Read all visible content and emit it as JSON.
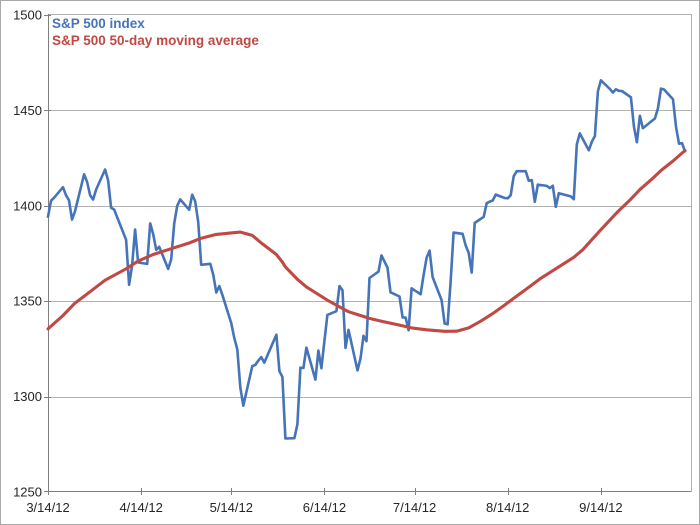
{
  "window": {
    "background": "#ffffff",
    "border_color": "#a9a9a9"
  },
  "chart_data": {
    "type": "line",
    "title": "",
    "grid": "horizontal",
    "legend_position": "top-left-inside",
    "colors": {
      "index_line": "#4674b9",
      "ma_line": "#c04944",
      "gridline": "#b3b3b3",
      "axis_line": "#7f7f7f",
      "tick_text": "#262626"
    },
    "x_axis": {
      "start": "3/14/12",
      "end": "10/14/12",
      "tick_labels": [
        "3/14/12",
        "4/14/12",
        "5/14/12",
        "6/14/12",
        "7/14/12",
        "8/14/12",
        "9/14/12"
      ]
    },
    "y_axis": {
      "min": 1250,
      "max": 1500,
      "step": 50,
      "tick_labels": [
        "1500",
        "1450",
        "1400",
        "1350",
        "1300",
        "1250"
      ]
    },
    "series": [
      {
        "name": "S&P 500 index",
        "color": "#4674b9",
        "width": 2.6,
        "points": [
          [
            "3/14",
            1394.28
          ],
          [
            "3/15",
            1402.6
          ],
          [
            "3/16",
            1404.17
          ],
          [
            "3/19",
            1409.75
          ],
          [
            "3/20",
            1405.52
          ],
          [
            "3/21",
            1402.89
          ],
          [
            "3/22",
            1392.78
          ],
          [
            "3/23",
            1397.11
          ],
          [
            "3/26",
            1416.51
          ],
          [
            "3/27",
            1412.52
          ],
          [
            "3/28",
            1405.54
          ],
          [
            "3/29",
            1403.28
          ],
          [
            "3/30",
            1408.47
          ],
          [
            "4/2",
            1419.04
          ],
          [
            "4/3",
            1413.38
          ],
          [
            "4/4",
            1398.96
          ],
          [
            "4/5",
            1398.08
          ],
          [
            "4/9",
            1382.2
          ],
          [
            "4/10",
            1358.59
          ],
          [
            "4/11",
            1368.71
          ],
          [
            "4/12",
            1387.57
          ],
          [
            "4/13",
            1370.26
          ],
          [
            "4/16",
            1369.57
          ],
          [
            "4/17",
            1390.78
          ],
          [
            "4/18",
            1385.14
          ],
          [
            "4/19",
            1376.92
          ],
          [
            "4/20",
            1378.53
          ],
          [
            "4/23",
            1366.94
          ],
          [
            "4/24",
            1371.97
          ],
          [
            "4/25",
            1390.69
          ],
          [
            "4/26",
            1399.98
          ],
          [
            "4/27",
            1403.36
          ],
          [
            "4/30",
            1397.91
          ],
          [
            "5/1",
            1405.82
          ],
          [
            "5/2",
            1402.31
          ],
          [
            "5/3",
            1391.57
          ],
          [
            "5/4",
            1369.1
          ],
          [
            "5/7",
            1369.58
          ],
          [
            "5/8",
            1363.72
          ],
          [
            "5/9",
            1354.58
          ],
          [
            "5/10",
            1357.99
          ],
          [
            "5/11",
            1353.39
          ],
          [
            "5/14",
            1338.35
          ],
          [
            "5/15",
            1330.66
          ],
          [
            "5/16",
            1324.8
          ],
          [
            "5/17",
            1304.86
          ],
          [
            "5/18",
            1295.22
          ],
          [
            "5/21",
            1315.99
          ],
          [
            "5/22",
            1316.63
          ],
          [
            "5/23",
            1318.86
          ],
          [
            "5/24",
            1320.68
          ],
          [
            "5/25",
            1317.82
          ],
          [
            "5/29",
            1332.42
          ],
          [
            "5/30",
            1313.32
          ],
          [
            "5/31",
            1310.33
          ],
          [
            "6/1",
            1278.04
          ],
          [
            "6/4",
            1278.18
          ],
          [
            "6/5",
            1285.5
          ],
          [
            "6/6",
            1315.13
          ],
          [
            "6/7",
            1314.99
          ],
          [
            "6/8",
            1325.66
          ],
          [
            "6/11",
            1308.93
          ],
          [
            "6/12",
            1324.18
          ],
          [
            "6/13",
            1314.88
          ],
          [
            "6/14",
            1329.1
          ],
          [
            "6/15",
            1342.84
          ],
          [
            "6/18",
            1344.78
          ],
          [
            "6/19",
            1357.98
          ],
          [
            "6/20",
            1355.69
          ],
          [
            "6/21",
            1325.51
          ],
          [
            "6/22",
            1335.02
          ],
          [
            "6/25",
            1313.72
          ],
          [
            "6/26",
            1319.99
          ],
          [
            "6/27",
            1331.85
          ],
          [
            "6/28",
            1329.04
          ],
          [
            "6/29",
            1362.16
          ],
          [
            "7/2",
            1365.51
          ],
          [
            "7/3",
            1374.02
          ],
          [
            "7/5",
            1367.58
          ],
          [
            "7/6",
            1354.68
          ],
          [
            "7/9",
            1352.46
          ],
          [
            "7/10",
            1341.47
          ],
          [
            "7/11",
            1341.45
          ],
          [
            "7/12",
            1334.76
          ],
          [
            "7/13",
            1356.78
          ],
          [
            "7/16",
            1353.64
          ],
          [
            "7/17",
            1363.67
          ],
          [
            "7/18",
            1372.78
          ],
          [
            "7/19",
            1376.51
          ],
          [
            "7/20",
            1362.66
          ],
          [
            "7/23",
            1350.52
          ],
          [
            "7/24",
            1338.31
          ],
          [
            "7/25",
            1337.89
          ],
          [
            "7/26",
            1360.02
          ],
          [
            "7/27",
            1385.97
          ],
          [
            "7/30",
            1385.3
          ],
          [
            "7/31",
            1379.32
          ],
          [
            "8/1",
            1375.32
          ],
          [
            "8/2",
            1365.0
          ],
          [
            "8/3",
            1390.99
          ],
          [
            "8/6",
            1394.23
          ],
          [
            "8/7",
            1401.35
          ],
          [
            "8/8",
            1402.22
          ],
          [
            "8/9",
            1402.8
          ],
          [
            "8/10",
            1405.87
          ],
          [
            "8/13",
            1404.11
          ],
          [
            "8/14",
            1403.93
          ],
          [
            "8/15",
            1405.53
          ],
          [
            "8/16",
            1415.51
          ],
          [
            "8/17",
            1418.16
          ],
          [
            "8/20",
            1418.13
          ],
          [
            "8/21",
            1413.17
          ],
          [
            "8/22",
            1413.49
          ],
          [
            "8/23",
            1402.08
          ],
          [
            "8/24",
            1411.13
          ],
          [
            "8/27",
            1410.44
          ],
          [
            "8/28",
            1409.3
          ],
          [
            "8/29",
            1410.49
          ],
          [
            "8/30",
            1399.48
          ],
          [
            "8/31",
            1406.58
          ],
          [
            "9/4",
            1404.94
          ],
          [
            "9/5",
            1403.44
          ],
          [
            "9/6",
            1432.12
          ],
          [
            "9/7",
            1437.92
          ],
          [
            "9/10",
            1429.08
          ],
          [
            "9/11",
            1433.56
          ],
          [
            "9/12",
            1436.56
          ],
          [
            "9/13",
            1459.99
          ],
          [
            "9/14",
            1465.77
          ],
          [
            "9/17",
            1461.19
          ],
          [
            "9/18",
            1459.32
          ],
          [
            "9/19",
            1461.05
          ],
          [
            "9/20",
            1460.26
          ],
          [
            "9/21",
            1460.15
          ],
          [
            "9/24",
            1456.89
          ],
          [
            "9/25",
            1441.59
          ],
          [
            "9/26",
            1433.32
          ],
          [
            "9/27",
            1447.15
          ],
          [
            "9/28",
            1440.67
          ],
          [
            "10/1",
            1444.49
          ],
          [
            "10/2",
            1445.75
          ],
          [
            "10/3",
            1450.99
          ],
          [
            "10/4",
            1461.4
          ],
          [
            "10/5",
            1460.93
          ],
          [
            "10/8",
            1455.88
          ],
          [
            "10/9",
            1441.48
          ],
          [
            "10/10",
            1432.56
          ],
          [
            "10/11",
            1432.84
          ],
          [
            "10/12",
            1428.59
          ]
        ]
      },
      {
        "name": "S&P 500 50-day moving average",
        "color": "#c04944",
        "width": 3.1,
        "points": [
          [
            "3/14",
            1335.5
          ],
          [
            "3/19",
            1342.5
          ],
          [
            "3/23",
            1349
          ],
          [
            "3/28",
            1355
          ],
          [
            "4/2",
            1361
          ],
          [
            "4/9",
            1367
          ],
          [
            "4/13",
            1371
          ],
          [
            "4/18",
            1374.5
          ],
          [
            "4/24",
            1377.5
          ],
          [
            "4/30",
            1380.5
          ],
          [
            "5/4",
            1383
          ],
          [
            "5/9",
            1385
          ],
          [
            "5/14",
            1385.8
          ],
          [
            "5/17",
            1386.2
          ],
          [
            "5/21",
            1384.5
          ],
          [
            "5/24",
            1380.5
          ],
          [
            "5/29",
            1374.5
          ],
          [
            "5/31",
            1370.5
          ],
          [
            "6/1",
            1368
          ],
          [
            "6/5",
            1361.5
          ],
          [
            "6/8",
            1357.5
          ],
          [
            "6/12",
            1353.5
          ],
          [
            "6/15",
            1350.5
          ],
          [
            "6/19",
            1347
          ],
          [
            "6/22",
            1344.5
          ],
          [
            "6/26",
            1342.5
          ],
          [
            "6/29",
            1341
          ],
          [
            "7/3",
            1339.5
          ],
          [
            "7/9",
            1337.5
          ],
          [
            "7/13",
            1336
          ],
          [
            "7/18",
            1335
          ],
          [
            "7/24",
            1334.2
          ],
          [
            "7/28",
            1334.3
          ],
          [
            "8/1",
            1336
          ],
          [
            "8/5",
            1339.5
          ],
          [
            "8/9",
            1343.5
          ],
          [
            "8/13",
            1348
          ],
          [
            "8/16",
            1351.5
          ],
          [
            "8/19",
            1355
          ],
          [
            "8/22",
            1358.5
          ],
          [
            "8/25",
            1362
          ],
          [
            "8/29",
            1366
          ],
          [
            "9/1",
            1369
          ],
          [
            "9/5",
            1373
          ],
          [
            "9/8",
            1377
          ],
          [
            "9/12",
            1384
          ],
          [
            "9/14",
            1387.5
          ],
          [
            "9/17",
            1392.5
          ],
          [
            "9/20",
            1397.5
          ],
          [
            "9/24",
            1403.5
          ],
          [
            "9/27",
            1408.5
          ],
          [
            "10/1",
            1414
          ],
          [
            "10/4",
            1418.5
          ],
          [
            "10/8",
            1423.5
          ],
          [
            "10/12",
            1429
          ]
        ]
      }
    ]
  }
}
